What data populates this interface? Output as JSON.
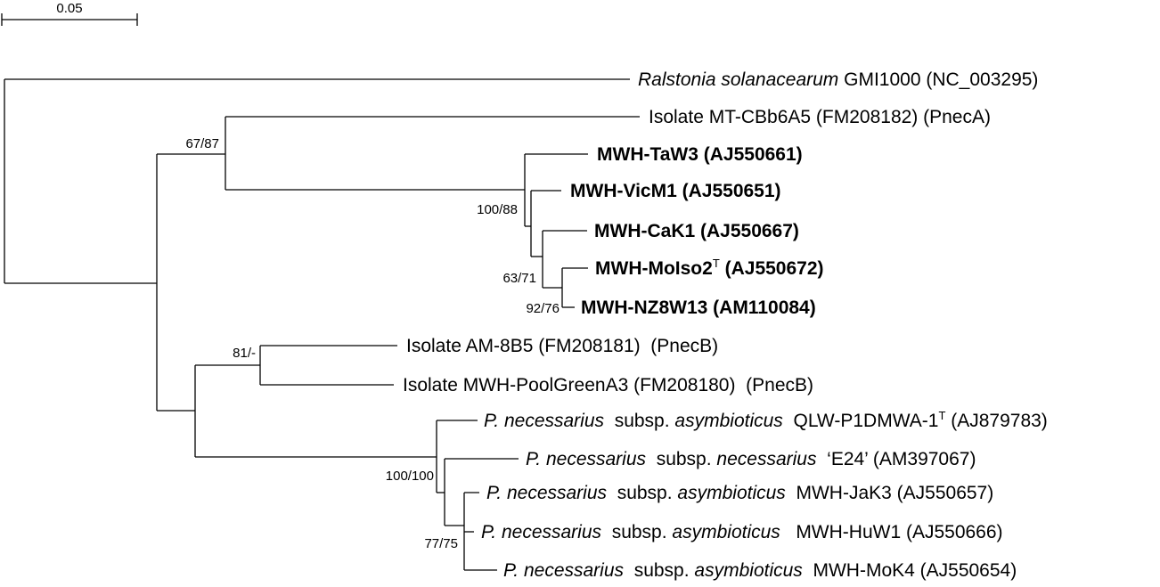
{
  "scale_bar": {
    "label": "0.05"
  },
  "taxa": [
    {
      "id": "ralstonia",
      "bold": false,
      "parts": [
        {
          "t": "Ralstonia solanacearum",
          "i": true
        },
        {
          "t": " GMI1000 (NC_003295)",
          "i": false
        }
      ]
    },
    {
      "id": "mt-cbb6a5",
      "bold": false,
      "parts": [
        {
          "t": "Isolate MT-CBb6A5 (FM208182) (PnecA)",
          "i": false
        }
      ]
    },
    {
      "id": "taw3",
      "bold": true,
      "parts": [
        {
          "t": "MWH-TaW3 (AJ550661)",
          "i": false
        }
      ]
    },
    {
      "id": "vicm1",
      "bold": true,
      "parts": [
        {
          "t": "MWH-VicM1 (AJ550651)",
          "i": false
        }
      ]
    },
    {
      "id": "cak1",
      "bold": true,
      "parts": [
        {
          "t": "MWH-CaK1 (AJ550667)",
          "i": false
        }
      ]
    },
    {
      "id": "moiso2",
      "bold": true,
      "parts": [
        {
          "t": "MWH-MoIso2",
          "i": false
        },
        {
          "t": "T",
          "i": false,
          "sup": true
        },
        {
          "t": " (AJ550672)",
          "i": false
        }
      ]
    },
    {
      "id": "nz8w13",
      "bold": true,
      "parts": [
        {
          "t": "MWH-NZ8W13 (AM110084)",
          "i": false
        }
      ]
    },
    {
      "id": "am-8b5",
      "bold": false,
      "parts": [
        {
          "t": "Isolate AM-8B5 (FM208181)  (PnecB)",
          "i": false
        }
      ]
    },
    {
      "id": "poolgreen",
      "bold": false,
      "parts": [
        {
          "t": "Isolate MWH-PoolGreenA3 (FM208180)  (PnecB)",
          "i": false
        }
      ]
    },
    {
      "id": "qlw",
      "bold": false,
      "parts": [
        {
          "t": "P. necessarius",
          "i": true
        },
        {
          "t": "  subsp. ",
          "i": false
        },
        {
          "t": "asymbioticus",
          "i": true
        },
        {
          "t": "  QLW-P1DMWA-1",
          "i": false
        },
        {
          "t": "T",
          "i": false,
          "sup": true
        },
        {
          "t": " (AJ879783)",
          "i": false
        }
      ]
    },
    {
      "id": "e24",
      "bold": false,
      "parts": [
        {
          "t": "P. necessarius",
          "i": true
        },
        {
          "t": "  subsp. ",
          "i": false
        },
        {
          "t": "necessarius",
          "i": true
        },
        {
          "t": "  ‘E24’ (AM397067)",
          "i": false
        }
      ]
    },
    {
      "id": "jak3",
      "bold": false,
      "parts": [
        {
          "t": "P. necessarius",
          "i": true
        },
        {
          "t": "  subsp. ",
          "i": false
        },
        {
          "t": "asymbioticus",
          "i": true
        },
        {
          "t": "  MWH-JaK3 (AJ550657)",
          "i": false
        }
      ]
    },
    {
      "id": "huw1",
      "bold": false,
      "parts": [
        {
          "t": "P. necessarius",
          "i": true
        },
        {
          "t": "  subsp. ",
          "i": false
        },
        {
          "t": "asymbioticus",
          "i": true
        },
        {
          "t": "   MWH-HuW1 (AJ550666)",
          "i": false
        }
      ]
    },
    {
      "id": "mok4",
      "bold": false,
      "parts": [
        {
          "t": "P. necessarius",
          "i": true
        },
        {
          "t": "  subsp. ",
          "i": false
        },
        {
          "t": "asymbioticus",
          "i": true
        },
        {
          "t": "  MWH-MoK4 (AJ550654)",
          "i": false
        }
      ]
    }
  ],
  "bootstrap": {
    "b67_87": "67/87",
    "b100_88": "100/88",
    "b63_71": "63/71",
    "b92_76": "92/76",
    "b81": "81/-",
    "b100_100": "100/100",
    "b77_75": "77/75"
  }
}
